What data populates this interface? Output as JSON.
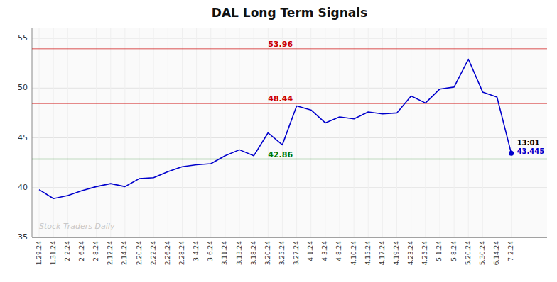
{
  "chart_data": {
    "type": "line",
    "title": "DAL Long Term Signals",
    "categories": [
      "1.29.24",
      "1.31.24",
      "2.2.24",
      "2.6.24",
      "2.8.24",
      "2.12.24",
      "2.14.24",
      "2.20.24",
      "2.22.24",
      "2.26.24",
      "2.28.24",
      "3.4.24",
      "3.6.24",
      "3.11.24",
      "3.13.24",
      "3.18.24",
      "3.20.24",
      "3.25.24",
      "3.27.24",
      "4.1.24",
      "4.3.24",
      "4.8.24",
      "4.10.24",
      "4.15.24",
      "4.17.24",
      "4.19.24",
      "4.23.24",
      "4.25.24",
      "5.1.24",
      "5.8.24",
      "5.20.24",
      "5.30.24",
      "6.14.24",
      "7.2.24"
    ],
    "series": [
      {
        "color": "#0000cc",
        "values": [
          39.8,
          38.9,
          39.2,
          39.7,
          40.1,
          40.4,
          40.1,
          40.9,
          41.0,
          41.6,
          42.1,
          42.3,
          42.4,
          43.2,
          43.8,
          43.2,
          45.5,
          44.3,
          48.2,
          47.8,
          46.5,
          47.1,
          46.9,
          47.6,
          47.4,
          47.5,
          49.2,
          48.5,
          49.9,
          50.1,
          52.9,
          49.6,
          49.1,
          43.445
        ]
      }
    ],
    "hlines": [
      {
        "value": 53.96,
        "label": "53.96",
        "color": "#cc0000"
      },
      {
        "value": 48.44,
        "label": "48.44",
        "color": "#cc0000"
      },
      {
        "value": 42.86,
        "label": "42.86",
        "color": "#007700"
      }
    ],
    "last_point_labels": [
      "13:01",
      "43.445"
    ],
    "watermark": "Stock Traders Daily",
    "ylim": [
      35,
      56
    ],
    "yticks": [
      35,
      40,
      45,
      50,
      55
    ],
    "grid": true
  }
}
